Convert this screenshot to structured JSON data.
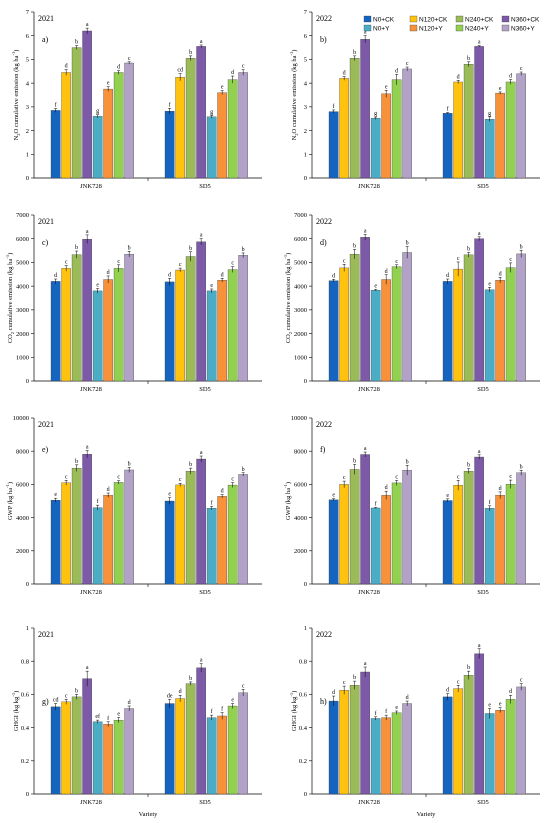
{
  "chart_data": [
    {
      "type": "bar",
      "panel": "a)",
      "year": "2021",
      "ylabel": "N2O cumulative emission (kg ha-1)",
      "ylim": [
        0,
        7
      ],
      "yticks": [
        0,
        1,
        2,
        3,
        4,
        5,
        6,
        7
      ],
      "categories": [
        "JNK728",
        "SD5"
      ],
      "values": [
        [
          2.85,
          4.45,
          5.5,
          6.2,
          2.6,
          3.75,
          4.45,
          4.85
        ],
        [
          2.82,
          4.25,
          5.05,
          5.55,
          2.58,
          3.6,
          4.15,
          4.45
        ]
      ],
      "errors": [
        [
          0.08,
          0.12,
          0.08,
          0.12,
          0.07,
          0.1,
          0.08,
          0.05
        ],
        [
          0.12,
          0.15,
          0.1,
          0.06,
          0.06,
          0.08,
          0.15,
          0.12
        ]
      ],
      "letters": [
        [
          "f",
          "d",
          "b",
          "a",
          "g",
          "e",
          "d",
          "c"
        ],
        [
          "f",
          "cd",
          "b",
          "a",
          "g",
          "e",
          "d",
          "c"
        ]
      ]
    },
    {
      "type": "bar",
      "panel": "b)",
      "year": "2022",
      "ylabel": "N2O cumulative emission (kg ha-1)",
      "ylim": [
        0,
        7
      ],
      "yticks": [
        0,
        1,
        2,
        3,
        4,
        5,
        6,
        7
      ],
      "categories": [
        "JNK728",
        "SD5"
      ],
      "values": [
        [
          2.8,
          4.2,
          5.05,
          5.85,
          2.52,
          3.55,
          4.15,
          4.6
        ],
        [
          2.73,
          4.05,
          4.8,
          5.55,
          2.48,
          3.58,
          4.05,
          4.4
        ]
      ],
      "errors": [
        [
          0.07,
          0.08,
          0.1,
          0.15,
          0.05,
          0.15,
          0.22,
          0.08
        ],
        [
          0.03,
          0.07,
          0.1,
          0.03,
          0.1,
          0.05,
          0.1,
          0.07
        ]
      ],
      "letters": [
        [
          "f",
          "d",
          "b",
          "a",
          "g",
          "e",
          "d",
          "c"
        ],
        [
          "f",
          "d",
          "b",
          "a",
          "g",
          "e",
          "d",
          "c"
        ]
      ],
      "legend": [
        "N0+CK",
        "N120+CK",
        "N240+CK",
        "N360+CK",
        "N0+Y",
        "N120+Y",
        "N240+Y",
        "N360+Y"
      ]
    },
    {
      "type": "bar",
      "panel": "c)",
      "year": "2021",
      "ylabel": "CO2 cumulative emission (kg ha-1)",
      "ylim": [
        0,
        7000
      ],
      "yticks": [
        0,
        1000,
        2000,
        3000,
        4000,
        5000,
        6000,
        7000
      ],
      "categories": [
        "JNK728",
        "SD5"
      ],
      "values": [
        [
          4200,
          4750,
          5330,
          5980,
          3800,
          4280,
          4750,
          5350
        ],
        [
          4180,
          4680,
          5250,
          5870,
          3800,
          4250,
          4700,
          5300
        ]
      ],
      "errors": [
        [
          100,
          120,
          150,
          180,
          100,
          150,
          150,
          120
        ],
        [
          150,
          80,
          200,
          130,
          80,
          80,
          120,
          100
        ]
      ],
      "letters": [
        [
          "d",
          "c",
          "b",
          "a",
          "e",
          "d",
          "c",
          "b"
        ],
        [
          "d",
          "c",
          "b",
          "a",
          "e",
          "d",
          "c",
          "b"
        ]
      ]
    },
    {
      "type": "bar",
      "panel": "d)",
      "year": "2022",
      "ylabel": "CO2 cumulative emission (kg ha-1)",
      "ylim": [
        0,
        7000
      ],
      "yticks": [
        0,
        1000,
        2000,
        3000,
        4000,
        5000,
        6000,
        7000
      ],
      "categories": [
        "JNK728",
        "SD5"
      ],
      "values": [
        [
          4230,
          4770,
          5350,
          6060,
          3830,
          4280,
          4820,
          5420
        ],
        [
          4200,
          4720,
          5320,
          6000,
          3850,
          4250,
          4780,
          5360
        ]
      ],
      "errors": [
        [
          60,
          150,
          200,
          120,
          30,
          200,
          80,
          250
        ],
        [
          100,
          300,
          100,
          80,
          100,
          120,
          200,
          150
        ]
      ],
      "letters": [
        [
          "d",
          "c",
          "b",
          "a",
          "e",
          "d",
          "c",
          "b"
        ],
        [
          "d",
          "c",
          "b",
          "a",
          "e",
          "d",
          "c",
          "b"
        ]
      ]
    },
    {
      "type": "bar",
      "panel": "e)",
      "year": "2021",
      "ylabel": "GWP (kg ha-1)",
      "ylim": [
        0,
        10000
      ],
      "yticks": [
        0,
        2000,
        4000,
        6000,
        8000,
        10000
      ],
      "categories": [
        "JNK728",
        "SD5"
      ],
      "values": [
        [
          5050,
          6100,
          6980,
          7820,
          4600,
          5350,
          6120,
          6870
        ],
        [
          5000,
          5970,
          6800,
          7530,
          4570,
          5280,
          5960,
          6600
        ]
      ],
      "errors": [
        [
          120,
          150,
          200,
          220,
          150,
          130,
          100,
          150
        ],
        [
          200,
          100,
          180,
          180,
          100,
          100,
          150,
          100
        ]
      ],
      "letters": [
        [
          "e",
          "c",
          "b",
          "a",
          "f",
          "d",
          "c",
          "b"
        ],
        [
          "e",
          "c",
          "b",
          "a",
          "f",
          "d",
          "c",
          "b"
        ]
      ]
    },
    {
      "type": "bar",
      "panel": "f)",
      "year": "2022",
      "ylabel": "GWP (kg ha-1)",
      "ylim": [
        0,
        10000
      ],
      "yticks": [
        0,
        2000,
        4000,
        6000,
        8000,
        10000
      ],
      "categories": [
        "JNK728",
        "SD5"
      ],
      "values": [
        [
          5070,
          6000,
          6900,
          7800,
          4580,
          5340,
          6090,
          6850
        ],
        [
          5030,
          5950,
          6800,
          7650,
          4560,
          5350,
          6010,
          6700
        ]
      ],
      "errors": [
        [
          70,
          200,
          300,
          150,
          30,
          250,
          150,
          300
        ],
        [
          100,
          300,
          150,
          130,
          150,
          200,
          250,
          150
        ]
      ],
      "letters": [
        [
          "e",
          "c",
          "b",
          "a",
          "f",
          "d",
          "c",
          "b"
        ],
        [
          "e",
          "c",
          "b",
          "a",
          "f",
          "d",
          "c",
          "b"
        ]
      ]
    },
    {
      "type": "bar",
      "panel": "g)",
      "year": "2021",
      "ylabel": "GHGI (kg kg-1)",
      "ylim": [
        0,
        1
      ],
      "yticks": [
        0,
        0.2,
        0.4,
        0.6,
        0.8,
        1
      ],
      "categories": [
        "JNK728",
        "SD5"
      ],
      "values": [
        [
          0.525,
          0.555,
          0.585,
          0.695,
          0.435,
          0.42,
          0.445,
          0.515
        ],
        [
          0.545,
          0.575,
          0.665,
          0.76,
          0.46,
          0.47,
          0.53,
          0.61
        ]
      ],
      "errors": [
        [
          0.02,
          0.015,
          0.015,
          0.045,
          0.01,
          0.015,
          0.015,
          0.015
        ],
        [
          0.025,
          0.02,
          0.01,
          0.025,
          0.015,
          0.02,
          0.015,
          0.02
        ]
      ],
      "letters": [
        [
          "cd",
          "c",
          "b",
          "a",
          "ef",
          "f",
          "e",
          "d"
        ],
        [
          "de",
          "d",
          "b",
          "a",
          "f",
          "f",
          "e",
          "c"
        ]
      ]
    },
    {
      "type": "bar",
      "panel": "h)",
      "year": "2022",
      "ylabel": "GHGI (kg kg-1)",
      "ylim": [
        0,
        1
      ],
      "yticks": [
        0,
        0.2,
        0.4,
        0.6,
        0.8,
        1
      ],
      "categories": [
        "JNK728",
        "SD5"
      ],
      "values": [
        [
          0.56,
          0.625,
          0.655,
          0.735,
          0.455,
          0.46,
          0.49,
          0.545
        ],
        [
          0.585,
          0.635,
          0.715,
          0.845,
          0.485,
          0.505,
          0.57,
          0.645
        ]
      ],
      "errors": [
        [
          0.03,
          0.025,
          0.025,
          0.03,
          0.01,
          0.015,
          0.01,
          0.015
        ],
        [
          0.02,
          0.02,
          0.025,
          0.03,
          0.03,
          0.015,
          0.025,
          0.02
        ]
      ],
      "letters": [
        [
          "d",
          "c",
          "b",
          "a",
          "f",
          "f",
          "e",
          "d"
        ],
        [
          "d",
          "c",
          "b",
          "a",
          "e",
          "e",
          "d",
          "c"
        ]
      ]
    }
  ],
  "series_colors": [
    "#1565C0",
    "#FFC20E",
    "#9BBB59",
    "#7D5AA8",
    "#4BACC6",
    "#F7923A",
    "#92D050",
    "#B3A2C7"
  ],
  "xlabel": "Variety"
}
